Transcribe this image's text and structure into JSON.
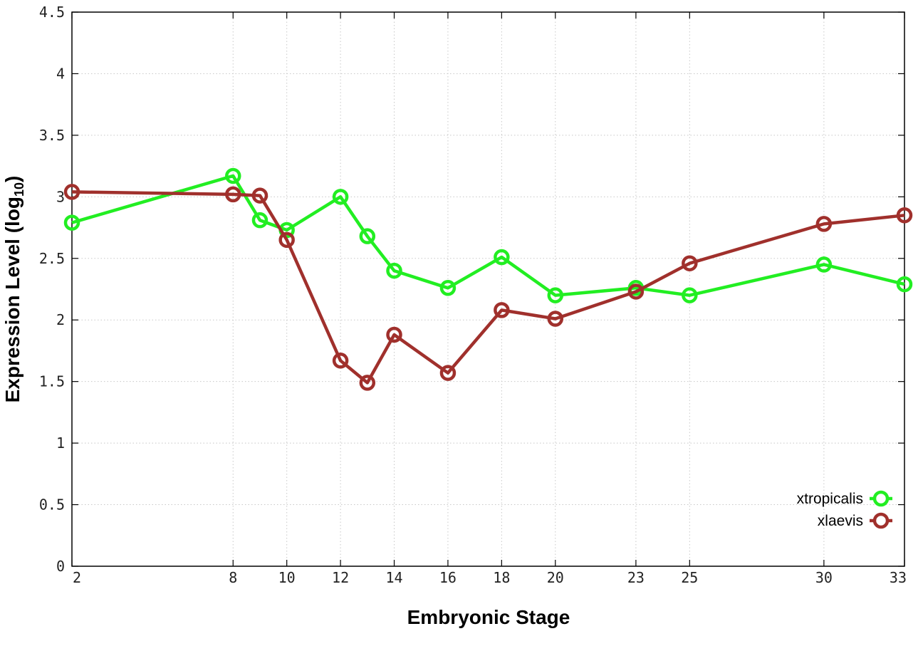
{
  "chart_data": {
    "type": "line",
    "xlabel": "Embryonic Stage",
    "ylabel": "Expression Level (log",
    "ylabel_subscript": "10",
    "ylabel_close": ")",
    "ylim": [
      0,
      4.5
    ],
    "yticks": [
      0,
      0.5,
      1,
      1.5,
      2,
      2.5,
      3,
      3.5,
      4,
      4.5
    ],
    "ytick_labels": [
      "0",
      "0.5",
      "1",
      "1.5",
      "2",
      "2.5",
      "3",
      "3.5",
      "4",
      "4.5"
    ],
    "xticks": [
      2,
      8,
      10,
      12,
      14,
      16,
      18,
      20,
      23,
      25,
      30,
      33
    ],
    "xtick_labels": [
      "2",
      "8",
      "10",
      "12",
      "14",
      "16",
      "18",
      "20",
      "23",
      "25",
      "30",
      "33"
    ],
    "x_grid": [
      8,
      10,
      12,
      14,
      16,
      18,
      20,
      23,
      25,
      30
    ],
    "grid": true,
    "legend_position": "bottom-right",
    "series": [
      {
        "name": "xtropicalis",
        "color": "#22ee22",
        "x": [
          2,
          8,
          9,
          10,
          12,
          13,
          14,
          16,
          18,
          20,
          23,
          25,
          30,
          33
        ],
        "values": [
          2.79,
          3.17,
          2.81,
          2.73,
          3.0,
          2.68,
          2.4,
          2.26,
          2.51,
          2.2,
          2.26,
          2.2,
          2.45,
          2.29
        ]
      },
      {
        "name": "xlaevis",
        "color": "#a0302c",
        "x": [
          2,
          8,
          9,
          10,
          12,
          13,
          14,
          16,
          18,
          20,
          23,
          25,
          30,
          33
        ],
        "values": [
          3.04,
          3.02,
          3.01,
          2.65,
          1.67,
          1.49,
          1.88,
          1.57,
          2.08,
          2.01,
          2.23,
          2.46,
          2.78,
          2.85
        ]
      }
    ]
  }
}
